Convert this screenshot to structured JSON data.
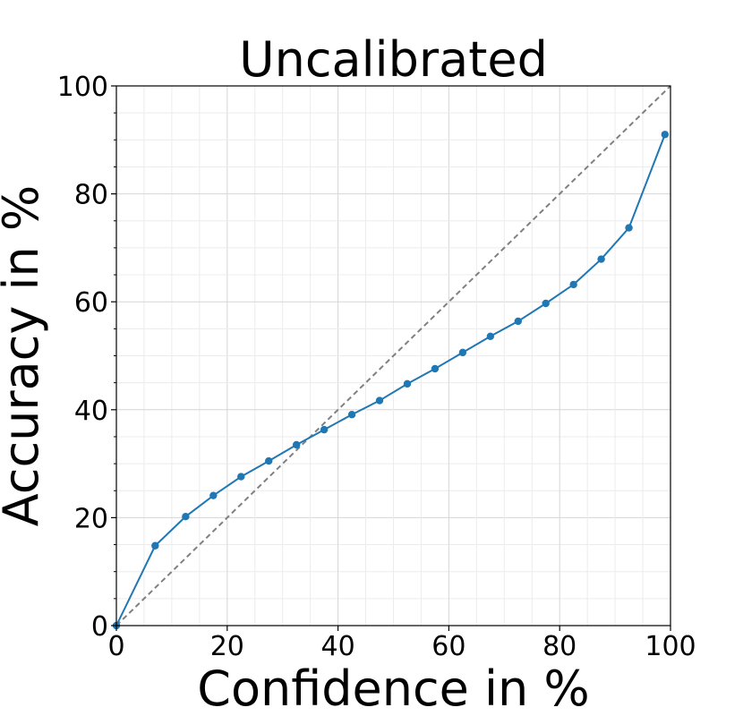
{
  "chart_data": {
    "type": "line",
    "title": "Uncalibrated",
    "xlabel": "Confidence in %",
    "ylabel": "Accuracy in %",
    "xlim": [
      0,
      100
    ],
    "ylim": [
      0,
      100
    ],
    "xticks": [
      "0",
      "20",
      "40",
      "60",
      "80",
      "100"
    ],
    "yticks": [
      "0",
      "20",
      "40",
      "60",
      "80",
      "100"
    ],
    "grid": true,
    "colors": {
      "series": "#1f77b4",
      "diagonal": "#808080",
      "grid": "#dddddd",
      "axis": "#000000"
    },
    "reference_line": {
      "style": "dashed",
      "points": [
        [
          0,
          0
        ],
        [
          100,
          100
        ]
      ]
    },
    "series": [
      {
        "x": [
          0,
          7,
          12.5,
          17.5,
          22.5,
          27.5,
          32.5,
          37.5,
          42.5,
          47.5,
          52.5,
          57.5,
          62.5,
          67.5,
          72.5,
          77.5,
          82.5,
          87.5,
          92.5,
          99
        ],
        "values": [
          0,
          14.8,
          20.2,
          24.1,
          27.6,
          30.5,
          33.5,
          36.3,
          39.1,
          41.7,
          44.8,
          47.6,
          50.6,
          53.6,
          56.4,
          59.7,
          63.2,
          67.9,
          73.7,
          91.0
        ]
      }
    ]
  }
}
